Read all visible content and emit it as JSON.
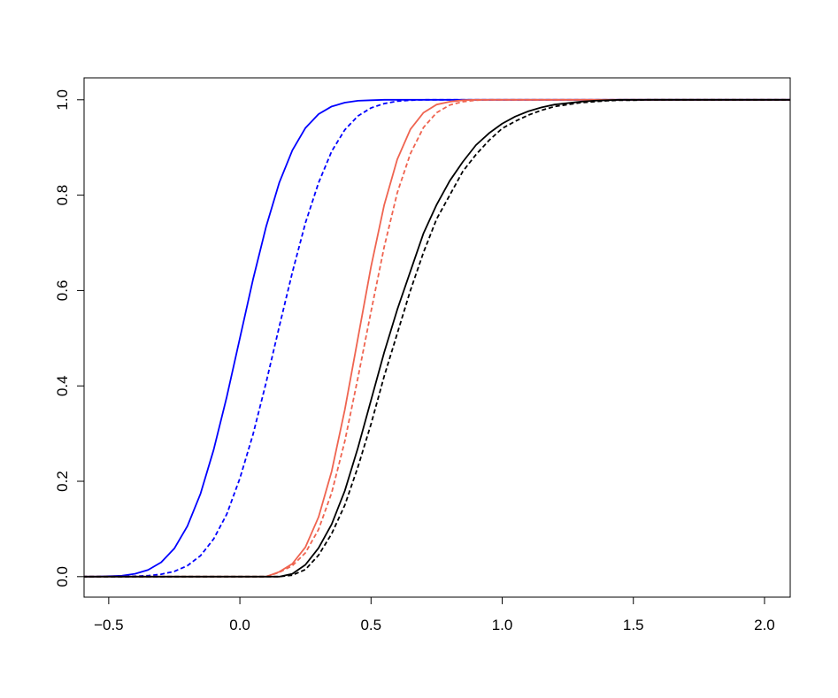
{
  "chart_data": {
    "type": "line",
    "x": [
      -0.6,
      -0.55,
      -0.5,
      -0.45,
      -0.4,
      -0.35,
      -0.3,
      -0.25,
      -0.2,
      -0.15,
      -0.1,
      -0.05,
      0,
      0.05,
      0.1,
      0.15,
      0.2,
      0.25,
      0.3,
      0.35,
      0.4,
      0.45,
      0.5,
      0.55,
      0.6,
      0.65,
      0.7,
      0.75,
      0.8,
      0.85,
      0.9,
      0.95,
      1.0,
      1.05,
      1.1,
      1.15,
      1.2,
      1.25,
      1.3,
      1.35,
      1.4,
      1.45,
      1.5,
      1.55,
      1.6,
      1.65,
      1.7,
      1.75,
      1.8,
      1.85,
      1.9,
      1.95,
      2.0,
      2.05,
      2.1
    ],
    "series": [
      {
        "color": "#0000ff",
        "linestyle": "solid",
        "values": [
          0,
          0,
          0.001,
          0.002,
          0.006,
          0.014,
          0.03,
          0.059,
          0.106,
          0.174,
          0.266,
          0.377,
          0.5,
          0.623,
          0.734,
          0.826,
          0.894,
          0.941,
          0.97,
          0.986,
          0.994,
          0.998,
          0.999,
          1,
          1,
          1,
          1,
          1,
          1,
          1,
          1,
          1,
          1,
          1,
          1,
          1,
          1,
          1,
          1,
          1,
          1,
          1,
          1,
          1,
          1,
          1,
          1,
          1,
          1,
          1,
          1,
          1,
          1,
          1,
          1
        ]
      },
      {
        "color": "#0000ff",
        "linestyle": "dashed",
        "values": [
          0,
          0,
          0,
          0,
          0.001,
          0.002,
          0.005,
          0.011,
          0.023,
          0.044,
          0.079,
          0.131,
          0.206,
          0.298,
          0.407,
          0.524,
          0.638,
          0.742,
          0.826,
          0.892,
          0.937,
          0.966,
          0.983,
          0.992,
          0.997,
          0.999,
          1,
          1,
          1,
          1,
          1,
          1,
          1,
          1,
          1,
          1,
          1,
          1,
          1,
          1,
          1,
          1,
          1,
          1,
          1,
          1,
          1,
          1,
          1,
          1,
          1,
          1,
          1,
          1,
          1
        ]
      },
      {
        "color": "#ef6450",
        "linestyle": "solid",
        "values": [
          0,
          0,
          0,
          0,
          0,
          0,
          0,
          0,
          0,
          0,
          0,
          0,
          0,
          0,
          0,
          0.01,
          0.027,
          0.062,
          0.125,
          0.221,
          0.35,
          0.5,
          0.65,
          0.779,
          0.875,
          0.938,
          0.973,
          0.99,
          0.996,
          0.999,
          1,
          1,
          1,
          1,
          1,
          1,
          1,
          1,
          1,
          1,
          1,
          1,
          1,
          1,
          1,
          1,
          1,
          1,
          1,
          1,
          1,
          1,
          1,
          1,
          1
        ]
      },
      {
        "color": "#ef6450",
        "linestyle": "dashed",
        "values": [
          0,
          0,
          0,
          0,
          0,
          0,
          0,
          0,
          0,
          0,
          0,
          0,
          0,
          0,
          0,
          0.009,
          0.023,
          0.05,
          0.099,
          0.176,
          0.284,
          0.417,
          0.556,
          0.691,
          0.805,
          0.887,
          0.942,
          0.973,
          0.989,
          0.996,
          0.999,
          1,
          1,
          1,
          1,
          1,
          1,
          1,
          1,
          1,
          1,
          1,
          1,
          1,
          1,
          1,
          1,
          1,
          1,
          1,
          1,
          1,
          1,
          1,
          1
        ]
      },
      {
        "color": "#000000",
        "linestyle": "solid",
        "values": [
          0,
          0,
          0,
          0,
          0,
          0,
          0,
          0,
          0,
          0,
          0,
          0,
          0,
          0,
          0,
          0,
          0.006,
          0.025,
          0.06,
          0.11,
          0.18,
          0.27,
          0.37,
          0.47,
          0.56,
          0.64,
          0.72,
          0.78,
          0.83,
          0.87,
          0.905,
          0.93,
          0.95,
          0.965,
          0.976,
          0.984,
          0.99,
          0.993,
          0.996,
          0.998,
          0.999,
          1,
          1,
          1,
          1,
          1,
          1,
          1,
          1,
          1,
          1,
          1,
          1,
          1,
          1
        ]
      },
      {
        "color": "#000000",
        "linestyle": "dashed",
        "values": [
          0,
          0,
          0,
          0,
          0,
          0,
          0,
          0,
          0,
          0,
          0,
          0,
          0,
          0,
          0,
          0,
          0.003,
          0.015,
          0.045,
          0.09,
          0.15,
          0.23,
          0.32,
          0.42,
          0.51,
          0.6,
          0.68,
          0.75,
          0.8,
          0.85,
          0.885,
          0.915,
          0.94,
          0.955,
          0.968,
          0.978,
          0.986,
          0.99,
          0.994,
          0.996,
          0.998,
          0.999,
          0.999,
          1,
          1,
          1,
          1,
          1,
          1,
          1,
          1,
          1,
          1,
          1,
          1
        ]
      }
    ],
    "xlim": [
      -0.594,
      2.098
    ],
    "ylim": [
      -0.043,
      1.046
    ],
    "xticks": [
      {
        "value": -0.5,
        "label": "−0.5"
      },
      {
        "value": 0,
        "label": "0.0"
      },
      {
        "value": 0.5,
        "label": "0.5"
      },
      {
        "value": 1,
        "label": "1.0"
      },
      {
        "value": 1.5,
        "label": "1.5"
      },
      {
        "value": 2,
        "label": "2.0"
      }
    ],
    "yticks": [
      {
        "value": 0,
        "label": "0.0"
      },
      {
        "value": 0.2,
        "label": "0.2"
      },
      {
        "value": 0.4,
        "label": "0.4"
      },
      {
        "value": 0.6,
        "label": "0.6"
      },
      {
        "value": 0.8,
        "label": "0.8"
      },
      {
        "value": 1,
        "label": "1.0"
      }
    ]
  }
}
